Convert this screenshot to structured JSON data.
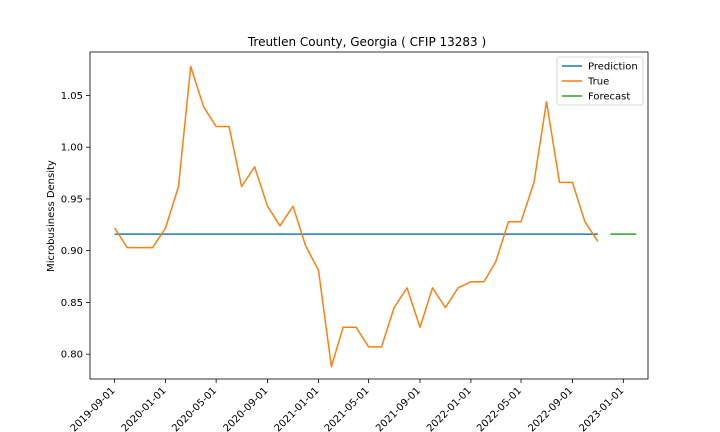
{
  "chart_data": {
    "type": "line",
    "title": "Treutlen County, Georgia ( CFIP 13283 )",
    "xlabel": "",
    "ylabel": "Microbusiness Density",
    "ylim": [
      0.776,
      1.092
    ],
    "xlim": [
      "2019-07-04",
      "2023-03-01"
    ],
    "yticks": [
      0.8,
      0.85,
      0.9,
      0.95,
      1.0,
      1.05
    ],
    "ytick_labels": [
      "0.80",
      "0.85",
      "0.90",
      "0.95",
      "1.00",
      "1.05"
    ],
    "xticks": [
      "2019-09-01",
      "2020-01-01",
      "2020-05-01",
      "2020-09-01",
      "2021-01-01",
      "2021-05-01",
      "2021-09-01",
      "2022-01-01",
      "2022-05-01",
      "2022-09-01",
      "2023-01-01"
    ],
    "grid": false,
    "legend_position": "top-right",
    "series": [
      {
        "name": "Prediction",
        "color": "#1f77b4",
        "x": [
          "2019-09-01",
          "2022-11-01"
        ],
        "y": [
          0.916,
          0.916
        ]
      },
      {
        "name": "True",
        "color": "#ff7f0e",
        "x": [
          "2019-09-01",
          "2019-10-01",
          "2019-11-01",
          "2019-12-01",
          "2020-01-01",
          "2020-02-01",
          "2020-03-01",
          "2020-04-01",
          "2020-05-01",
          "2020-06-01",
          "2020-07-01",
          "2020-08-01",
          "2020-09-01",
          "2020-10-01",
          "2020-11-01",
          "2020-12-01",
          "2021-01-01",
          "2021-02-01",
          "2021-03-01",
          "2021-04-01",
          "2021-05-01",
          "2021-06-01",
          "2021-07-01",
          "2021-08-01",
          "2021-09-01",
          "2021-10-01",
          "2021-11-01",
          "2021-12-01",
          "2022-01-01",
          "2022-02-01",
          "2022-03-01",
          "2022-04-01",
          "2022-05-01",
          "2022-06-01",
          "2022-07-01",
          "2022-08-01",
          "2022-09-01",
          "2022-10-01",
          "2022-11-01"
        ],
        "y": [
          0.922,
          0.903,
          0.903,
          0.903,
          0.922,
          0.962,
          1.078,
          1.039,
          1.02,
          1.02,
          0.962,
          0.981,
          0.943,
          0.924,
          0.943,
          0.905,
          0.881,
          0.788,
          0.826,
          0.826,
          0.807,
          0.807,
          0.845,
          0.864,
          0.826,
          0.864,
          0.845,
          0.864,
          0.87,
          0.87,
          0.889,
          0.928,
          0.928,
          0.966,
          1.044,
          0.966,
          0.966,
          0.928,
          0.909
        ]
      },
      {
        "name": "Forecast",
        "color": "#2ca02c",
        "x": [
          "2022-12-01",
          "2023-02-01"
        ],
        "y": [
          0.916,
          0.916
        ]
      }
    ]
  }
}
